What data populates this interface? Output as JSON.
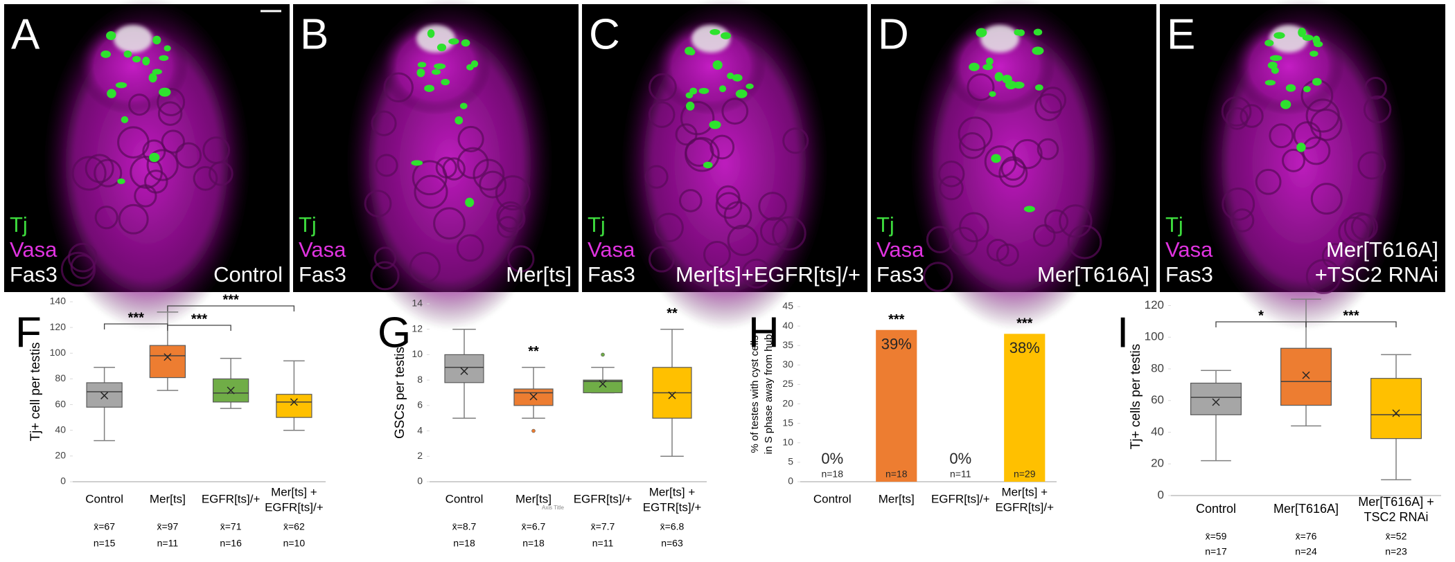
{
  "panels": [
    {
      "letter": "A",
      "channels": [
        "Tj",
        "Vasa",
        "Fas3"
      ],
      "genotype": [
        "Control"
      ]
    },
    {
      "letter": "B",
      "channels": [
        "Tj",
        "Vasa",
        "Fas3"
      ],
      "genotype": [
        "Mer[ts]"
      ]
    },
    {
      "letter": "C",
      "channels": [
        "Tj",
        "Vasa",
        "Fas3"
      ],
      "genotype": [
        "Mer[ts]+EGFR[ts]/+"
      ]
    },
    {
      "letter": "D",
      "channels": [
        "Tj",
        "Vasa",
        "Fas3"
      ],
      "genotype": [
        "Mer[T616A]"
      ]
    },
    {
      "letter": "E",
      "channels": [
        "Tj",
        "Vasa",
        "Fas3"
      ],
      "genotype": [
        "Mer[T616A]",
        "+TSC2 RNAi"
      ]
    }
  ],
  "chart_data": [
    {
      "type": "box",
      "label": "F",
      "ylabel": "Tj+ cell per testis",
      "categories": [
        "Control",
        "Mer[ts]",
        "EGFR[ts]/+",
        [
          "Mer[ts] +",
          "EGFR[ts]/+"
        ]
      ],
      "whisker_low": [
        32,
        71,
        57,
        40
      ],
      "q1": [
        58,
        81,
        62,
        50
      ],
      "median": [
        70,
        98,
        69,
        62
      ],
      "q3": [
        77,
        106,
        80,
        68
      ],
      "whisker_high": [
        89,
        132,
        96,
        94
      ],
      "means": [
        67,
        97,
        71,
        62
      ],
      "mean_labels": [
        "x̄=67",
        "x̄=97",
        "x̄=71",
        "x̄=62"
      ],
      "n_labels": [
        "n=15",
        "n=11",
        "n=16",
        "n=10"
      ],
      "colors": [
        "#a6a6a6",
        "#ed7d31",
        "#70ad47",
        "#ffc000"
      ],
      "annotations": [
        "***",
        "***",
        "***"
      ],
      "ylim": [
        0,
        140
      ],
      "yticks": [
        0,
        20,
        40,
        60,
        80,
        100,
        120,
        140
      ]
    },
    {
      "type": "box",
      "label": "G",
      "ylabel": "GSCs per testis",
      "categories": [
        "Control",
        "Mer[ts]",
        "EGFR[ts]/+",
        [
          "Mer[ts] +",
          "EGTR[ts]/+"
        ]
      ],
      "x_axis_title": "Axis Title",
      "whisker_low": [
        5,
        5,
        7,
        2
      ],
      "q1": [
        7.8,
        6,
        7,
        5
      ],
      "median": [
        9,
        7,
        7.9,
        7
      ],
      "q3": [
        10,
        7.3,
        8,
        9
      ],
      "whisker_high": [
        12,
        9,
        9,
        12
      ],
      "outliers": [
        [],
        [
          4
        ],
        [
          10
        ],
        []
      ],
      "means": [
        8.7,
        6.7,
        7.7,
        6.8
      ],
      "mean_labels": [
        "x̄=8.7",
        "x̄=6.7",
        "x̄=7.7",
        "x̄=6.8"
      ],
      "n_labels": [
        "n=18",
        "n=18",
        "n=11",
        "n=63"
      ],
      "colors": [
        "#a6a6a6",
        "#ed7d31",
        "#70ad47",
        "#ffc000"
      ],
      "annotations": [
        "**",
        "**"
      ],
      "ylim": [
        0,
        14
      ],
      "yticks": [
        0,
        2,
        4,
        6,
        8,
        10,
        12,
        14
      ]
    },
    {
      "type": "bar",
      "label": "H",
      "ylabel": [
        "% of testes with cyst cells",
        "in S phase away from hub"
      ],
      "categories": [
        "Control",
        "Mer[ts]",
        "EGFR[ts]/+",
        [
          "Mer[ts] +",
          "EGFR[ts]/+"
        ]
      ],
      "values": [
        0,
        39,
        0,
        38
      ],
      "value_labels": [
        "0%",
        "39%",
        "0%",
        "38%"
      ],
      "n_labels": [
        "n=18",
        "n=18",
        "n=11",
        "n=29"
      ],
      "colors": [
        "#a6a6a6",
        "#ed7d31",
        "#70ad47",
        "#ffc000"
      ],
      "annotations": [
        "***",
        "***"
      ],
      "ylim": [
        0,
        45
      ],
      "yticks": [
        0,
        5,
        10,
        15,
        20,
        25,
        30,
        35,
        40,
        45
      ]
    },
    {
      "type": "box",
      "label": "I",
      "ylabel": "Tj+ cells per testis",
      "categories": [
        "Control",
        "Mer[T616A]",
        [
          "Mer[T616A] +",
          "TSC2 RNAi"
        ]
      ],
      "whisker_low": [
        22,
        44,
        10
      ],
      "q1": [
        51,
        57,
        36
      ],
      "median": [
        62,
        72,
        51
      ],
      "q3": [
        71,
        93,
        74
      ],
      "whisker_high": [
        79,
        124,
        89
      ],
      "means": [
        59,
        76,
        52
      ],
      "mean_labels": [
        "x̄=59",
        "x̄=76",
        "x̄=52"
      ],
      "n_labels": [
        "n=17",
        "n=24",
        "n=23"
      ],
      "colors": [
        "#a6a6a6",
        "#ed7d31",
        "#ffc000"
      ],
      "annotations": [
        "*",
        "***"
      ],
      "ylim": [
        0,
        125
      ],
      "yticks": [
        0,
        20,
        40,
        60,
        80,
        100,
        120
      ]
    }
  ]
}
